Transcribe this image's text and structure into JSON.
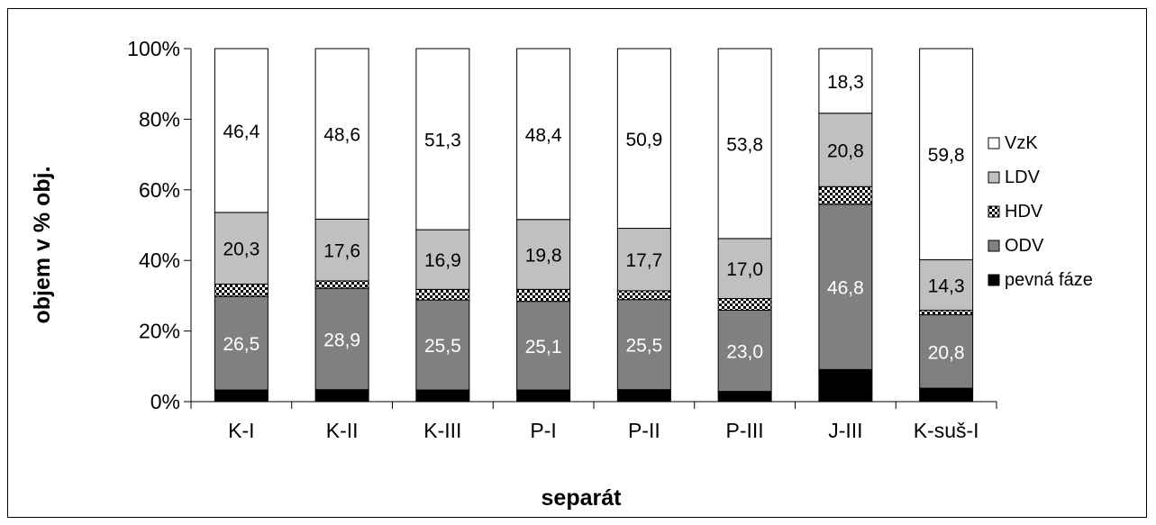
{
  "chart_data": {
    "type": "bar",
    "stacked": true,
    "stacked_percent": true,
    "title": "",
    "xlabel": "separát",
    "ylabel": "objem v % obj.",
    "ylim": [
      0,
      100
    ],
    "yticks": [
      "0%",
      "20%",
      "40%",
      "60%",
      "80%",
      "100%"
    ],
    "yticks_values": [
      0,
      20,
      40,
      60,
      80,
      100
    ],
    "grid": false,
    "legend_position": "right",
    "categories": [
      "K-I",
      "K-II",
      "K-III",
      "P-I",
      "P-II",
      "P-III",
      "J-III",
      "K-suš-I"
    ],
    "series": [
      {
        "name": "pevná fáze",
        "values": [
          3.3,
          3.4,
          3.3,
          3.3,
          3.4,
          2.9,
          9.1,
          3.8
        ],
        "color": "#000000",
        "pattern": "solid",
        "labels": [
          "",
          "",
          "",
          "",
          "",
          "",
          "",
          ""
        ]
      },
      {
        "name": "ODV",
        "values": [
          26.5,
          28.9,
          25.5,
          25.1,
          25.5,
          23.0,
          46.8,
          20.8
        ],
        "color": "#808080",
        "pattern": "solid",
        "labels": [
          "26,5",
          "28,9",
          "25,5",
          "25,1",
          "25,5",
          "23,0",
          "46,8",
          "20,8"
        ],
        "label_color": "#ffffff"
      },
      {
        "name": "HDV",
        "values": [
          3.5,
          2.1,
          3.0,
          3.4,
          2.5,
          3.3,
          5.0,
          1.3
        ],
        "color": "#ffffff",
        "pattern": "checker",
        "labels": [
          "",
          "",
          "",
          "",
          "",
          "",
          "",
          ""
        ]
      },
      {
        "name": "LDV",
        "values": [
          20.3,
          17.6,
          16.9,
          19.8,
          17.7,
          17.0,
          20.8,
          14.3
        ],
        "color": "#c0c0c0",
        "pattern": "solid",
        "labels": [
          "20,3",
          "17,6",
          "16,9",
          "19,8",
          "17,7",
          "17,0",
          "20,8",
          "14,3"
        ],
        "label_color": "#000000"
      },
      {
        "name": "VzK",
        "values": [
          46.4,
          48.6,
          51.3,
          48.4,
          50.9,
          53.8,
          18.3,
          59.8
        ],
        "color": "#ffffff",
        "pattern": "solid",
        "labels": [
          "46,4",
          "48,6",
          "51,3",
          "48,4",
          "50,9",
          "53,8",
          "18,3",
          "59,8"
        ],
        "label_color": "#000000"
      }
    ],
    "legend_order": [
      "VzK",
      "LDV",
      "HDV",
      "ODV",
      "pevná fáze"
    ]
  }
}
